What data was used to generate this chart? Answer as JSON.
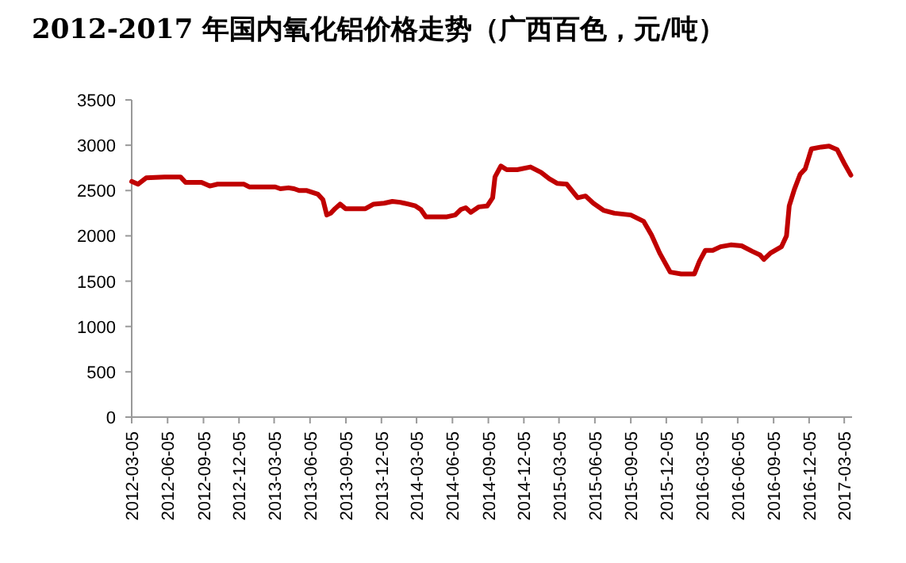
{
  "chart_data": {
    "type": "line",
    "title": "2012-2017 年国内氧化铝价格走势（广西百色，元/吨）",
    "x": [
      "2012-03-05",
      "2012-03-21",
      "2012-04-11",
      "2012-05-28",
      "2012-07-08",
      "2012-07-21",
      "2012-08-31",
      "2012-09-21",
      "2012-10-11",
      "2012-12-18",
      "2012-12-31",
      "2013-03-08",
      "2013-03-21",
      "2013-04-11",
      "2013-04-25",
      "2013-05-08",
      "2013-05-28",
      "2013-06-25",
      "2013-07-08",
      "2013-07-18",
      "2013-07-28",
      "2013-08-08",
      "2013-08-21",
      "2013-09-04",
      "2013-10-25",
      "2013-11-15",
      "2013-12-12",
      "2014-01-02",
      "2014-01-22",
      "2014-02-12",
      "2014-03-02",
      "2014-03-16",
      "2014-03-29",
      "2014-05-22",
      "2014-06-12",
      "2014-06-26",
      "2014-07-09",
      "2014-07-22",
      "2014-08-12",
      "2014-09-02",
      "2014-09-16",
      "2014-09-22",
      "2014-10-07",
      "2014-10-22",
      "2014-11-18",
      "2014-12-22",
      "2015-01-18",
      "2015-02-08",
      "2015-02-28",
      "2015-03-25",
      "2015-04-22",
      "2015-05-12",
      "2015-06-01",
      "2015-06-28",
      "2015-07-25",
      "2015-09-05",
      "2015-10-08",
      "2015-10-28",
      "2015-11-18",
      "2015-12-15",
      "2016-01-12",
      "2016-02-15",
      "2016-02-28",
      "2016-03-14",
      "2016-04-02",
      "2016-04-22",
      "2016-05-18",
      "2016-06-15",
      "2016-07-12",
      "2016-08-01",
      "2016-08-11",
      "2016-08-28",
      "2016-09-25",
      "2016-10-08",
      "2016-10-15",
      "2016-10-28",
      "2016-11-12",
      "2016-11-25",
      "2016-12-11",
      "2017-01-05",
      "2017-01-25",
      "2017-02-15",
      "2017-03-05",
      "2017-03-22"
    ],
    "series": [
      {
        "color": "#c00000",
        "values": [
          2600,
          2570,
          2640,
          2650,
          2650,
          2590,
          2590,
          2550,
          2570,
          2570,
          2540,
          2540,
          2520,
          2530,
          2520,
          2500,
          2500,
          2460,
          2400,
          2230,
          2250,
          2300,
          2350,
          2300,
          2300,
          2350,
          2360,
          2380,
          2370,
          2350,
          2330,
          2290,
          2210,
          2210,
          2230,
          2290,
          2310,
          2260,
          2320,
          2330,
          2420,
          2650,
          2770,
          2730,
          2730,
          2760,
          2700,
          2630,
          2580,
          2570,
          2420,
          2440,
          2360,
          2280,
          2250,
          2230,
          2160,
          2010,
          1810,
          1600,
          1580,
          1580,
          1720,
          1840,
          1840,
          1880,
          1900,
          1890,
          1830,
          1790,
          1740,
          1810,
          1880,
          2000,
          2330,
          2510,
          2680,
          2740,
          2960,
          2980,
          2990,
          2950,
          2800,
          2670
        ]
      }
    ],
    "xlim": [
      "2012-03-05",
      "2017-03-25"
    ],
    "xticks": [
      "2012-03-05",
      "2012-06-05",
      "2012-09-05",
      "2012-12-05",
      "2013-03-05",
      "2013-06-05",
      "2013-09-05",
      "2013-12-05",
      "2014-03-05",
      "2014-06-05",
      "2014-09-05",
      "2014-12-05",
      "2015-03-05",
      "2015-06-05",
      "2015-09-05",
      "2015-12-05",
      "2016-03-05",
      "2016-06-05",
      "2016-09-05",
      "2016-12-05",
      "2017-03-05"
    ],
    "ylim": [
      0,
      3500
    ],
    "yticks": [
      0,
      500,
      1000,
      1500,
      2000,
      2500,
      3000,
      3500
    ],
    "grid": false,
    "marker": "none",
    "line_style": "solid"
  }
}
